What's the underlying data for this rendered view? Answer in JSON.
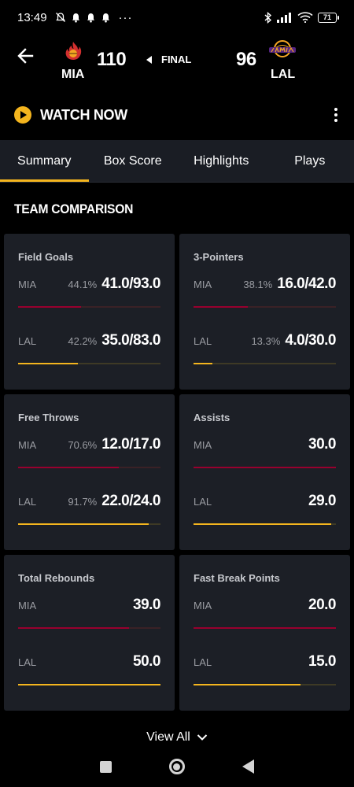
{
  "status_bar": {
    "time": "13:49",
    "dots": "···",
    "battery": "71"
  },
  "game": {
    "home": {
      "abbr": "MIA",
      "score": "110"
    },
    "away": {
      "abbr": "LAL",
      "score": "96"
    },
    "status": "FINAL"
  },
  "watch": {
    "label": "WATCH NOW"
  },
  "tabs": [
    {
      "label": "Summary",
      "active": true
    },
    {
      "label": "Box Score",
      "active": false
    },
    {
      "label": "Highlights",
      "active": false
    },
    {
      "label": "Plays",
      "active": false
    }
  ],
  "section_title": "TEAM COMPARISON",
  "stats": [
    {
      "title": "Field Goals",
      "mia": {
        "abbr": "MIA",
        "pct": "44.1%",
        "value": "41.0/93.0",
        "bar": 0.441
      },
      "lal": {
        "abbr": "LAL",
        "pct": "42.2%",
        "value": "35.0/83.0",
        "bar": 0.422
      }
    },
    {
      "title": "3-Pointers",
      "mia": {
        "abbr": "MIA",
        "pct": "38.1%",
        "value": "16.0/42.0",
        "bar": 0.381
      },
      "lal": {
        "abbr": "LAL",
        "pct": "13.3%",
        "value": "4.0/30.0",
        "bar": 0.133
      }
    },
    {
      "title": "Free Throws",
      "mia": {
        "abbr": "MIA",
        "pct": "70.6%",
        "value": "12.0/17.0",
        "bar": 0.706
      },
      "lal": {
        "abbr": "LAL",
        "pct": "91.7%",
        "value": "22.0/24.0",
        "bar": 0.917
      }
    },
    {
      "title": "Assists",
      "mia": {
        "abbr": "MIA",
        "pct": "",
        "value": "30.0",
        "bar": 1.0
      },
      "lal": {
        "abbr": "LAL",
        "pct": "",
        "value": "29.0",
        "bar": 0.967
      }
    },
    {
      "title": "Total Rebounds",
      "mia": {
        "abbr": "MIA",
        "pct": "",
        "value": "39.0",
        "bar": 0.78
      },
      "lal": {
        "abbr": "LAL",
        "pct": "",
        "value": "50.0",
        "bar": 1.0
      }
    },
    {
      "title": "Fast Break Points",
      "mia": {
        "abbr": "MIA",
        "pct": "",
        "value": "20.0",
        "bar": 1.0
      },
      "lal": {
        "abbr": "LAL",
        "pct": "",
        "value": "15.0",
        "bar": 0.75
      }
    }
  ],
  "view_all": {
    "label": "View All"
  },
  "colors": {
    "mia": "#98002e",
    "lal": "#f4b51e",
    "background": "#000000",
    "card": "#1c1f26"
  }
}
